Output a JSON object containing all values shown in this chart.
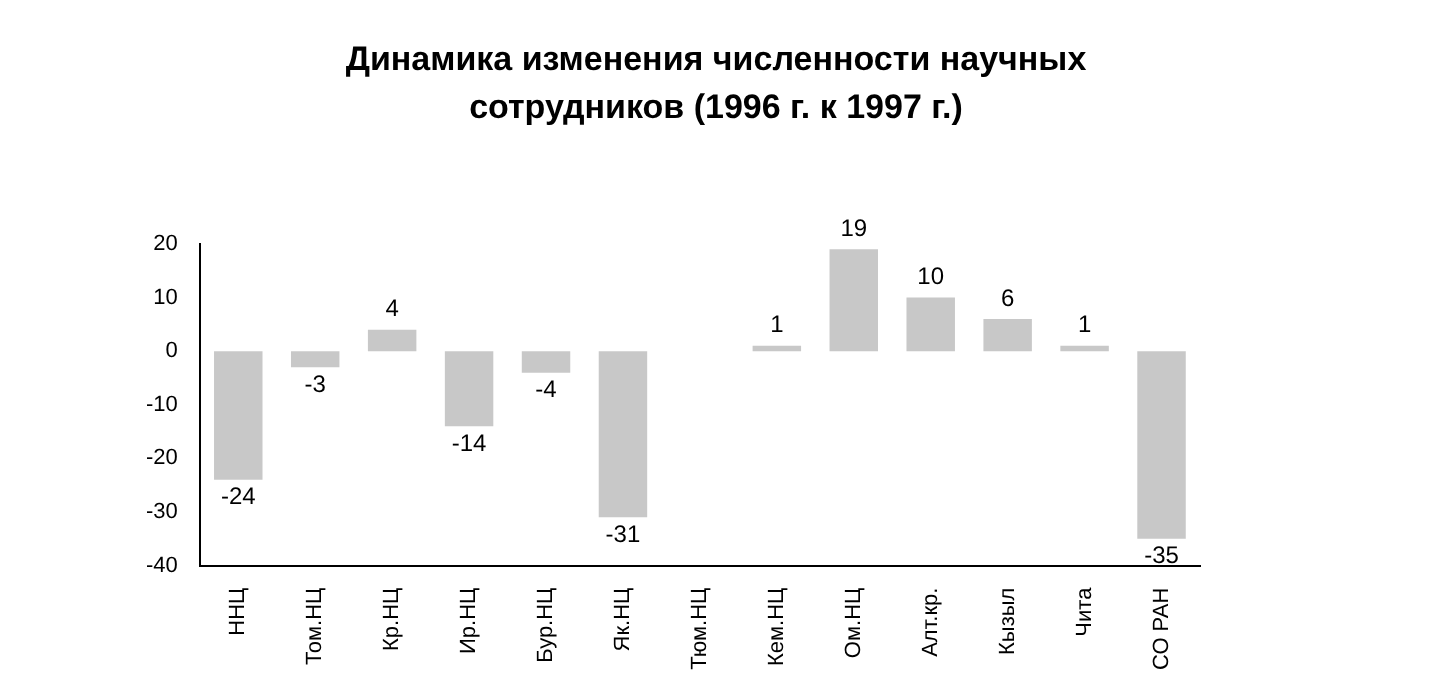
{
  "chart_data": {
    "type": "bar",
    "title": "Динамика изменения численности научных сотрудников (1996 г. к 1997 г.)",
    "categories": [
      "ННЦ",
      "Том.НЦ",
      "Кр.НЦ",
      "Ир.НЦ",
      "Бур.НЦ",
      "Як.НЦ",
      "Тюм.НЦ",
      "Кем.НЦ",
      "Ом.НЦ",
      "Алт.кр.",
      "Кызыл",
      "Чита",
      "СО РАН"
    ],
    "values": [
      -24,
      -3,
      4,
      -14,
      -4,
      -31,
      0,
      1,
      19,
      10,
      6,
      1,
      -35
    ],
    "value_labels": [
      "-24",
      "-3",
      "4",
      "-14",
      "-4",
      "-31",
      null,
      "1",
      "19",
      "10",
      "6",
      "1",
      "-35"
    ],
    "color": "#c8c8c8",
    "ylim": [
      -40,
      20
    ],
    "yticks": [
      -40,
      -30,
      -20,
      -10,
      0,
      10,
      20
    ],
    "grid": false,
    "legend": false
  }
}
